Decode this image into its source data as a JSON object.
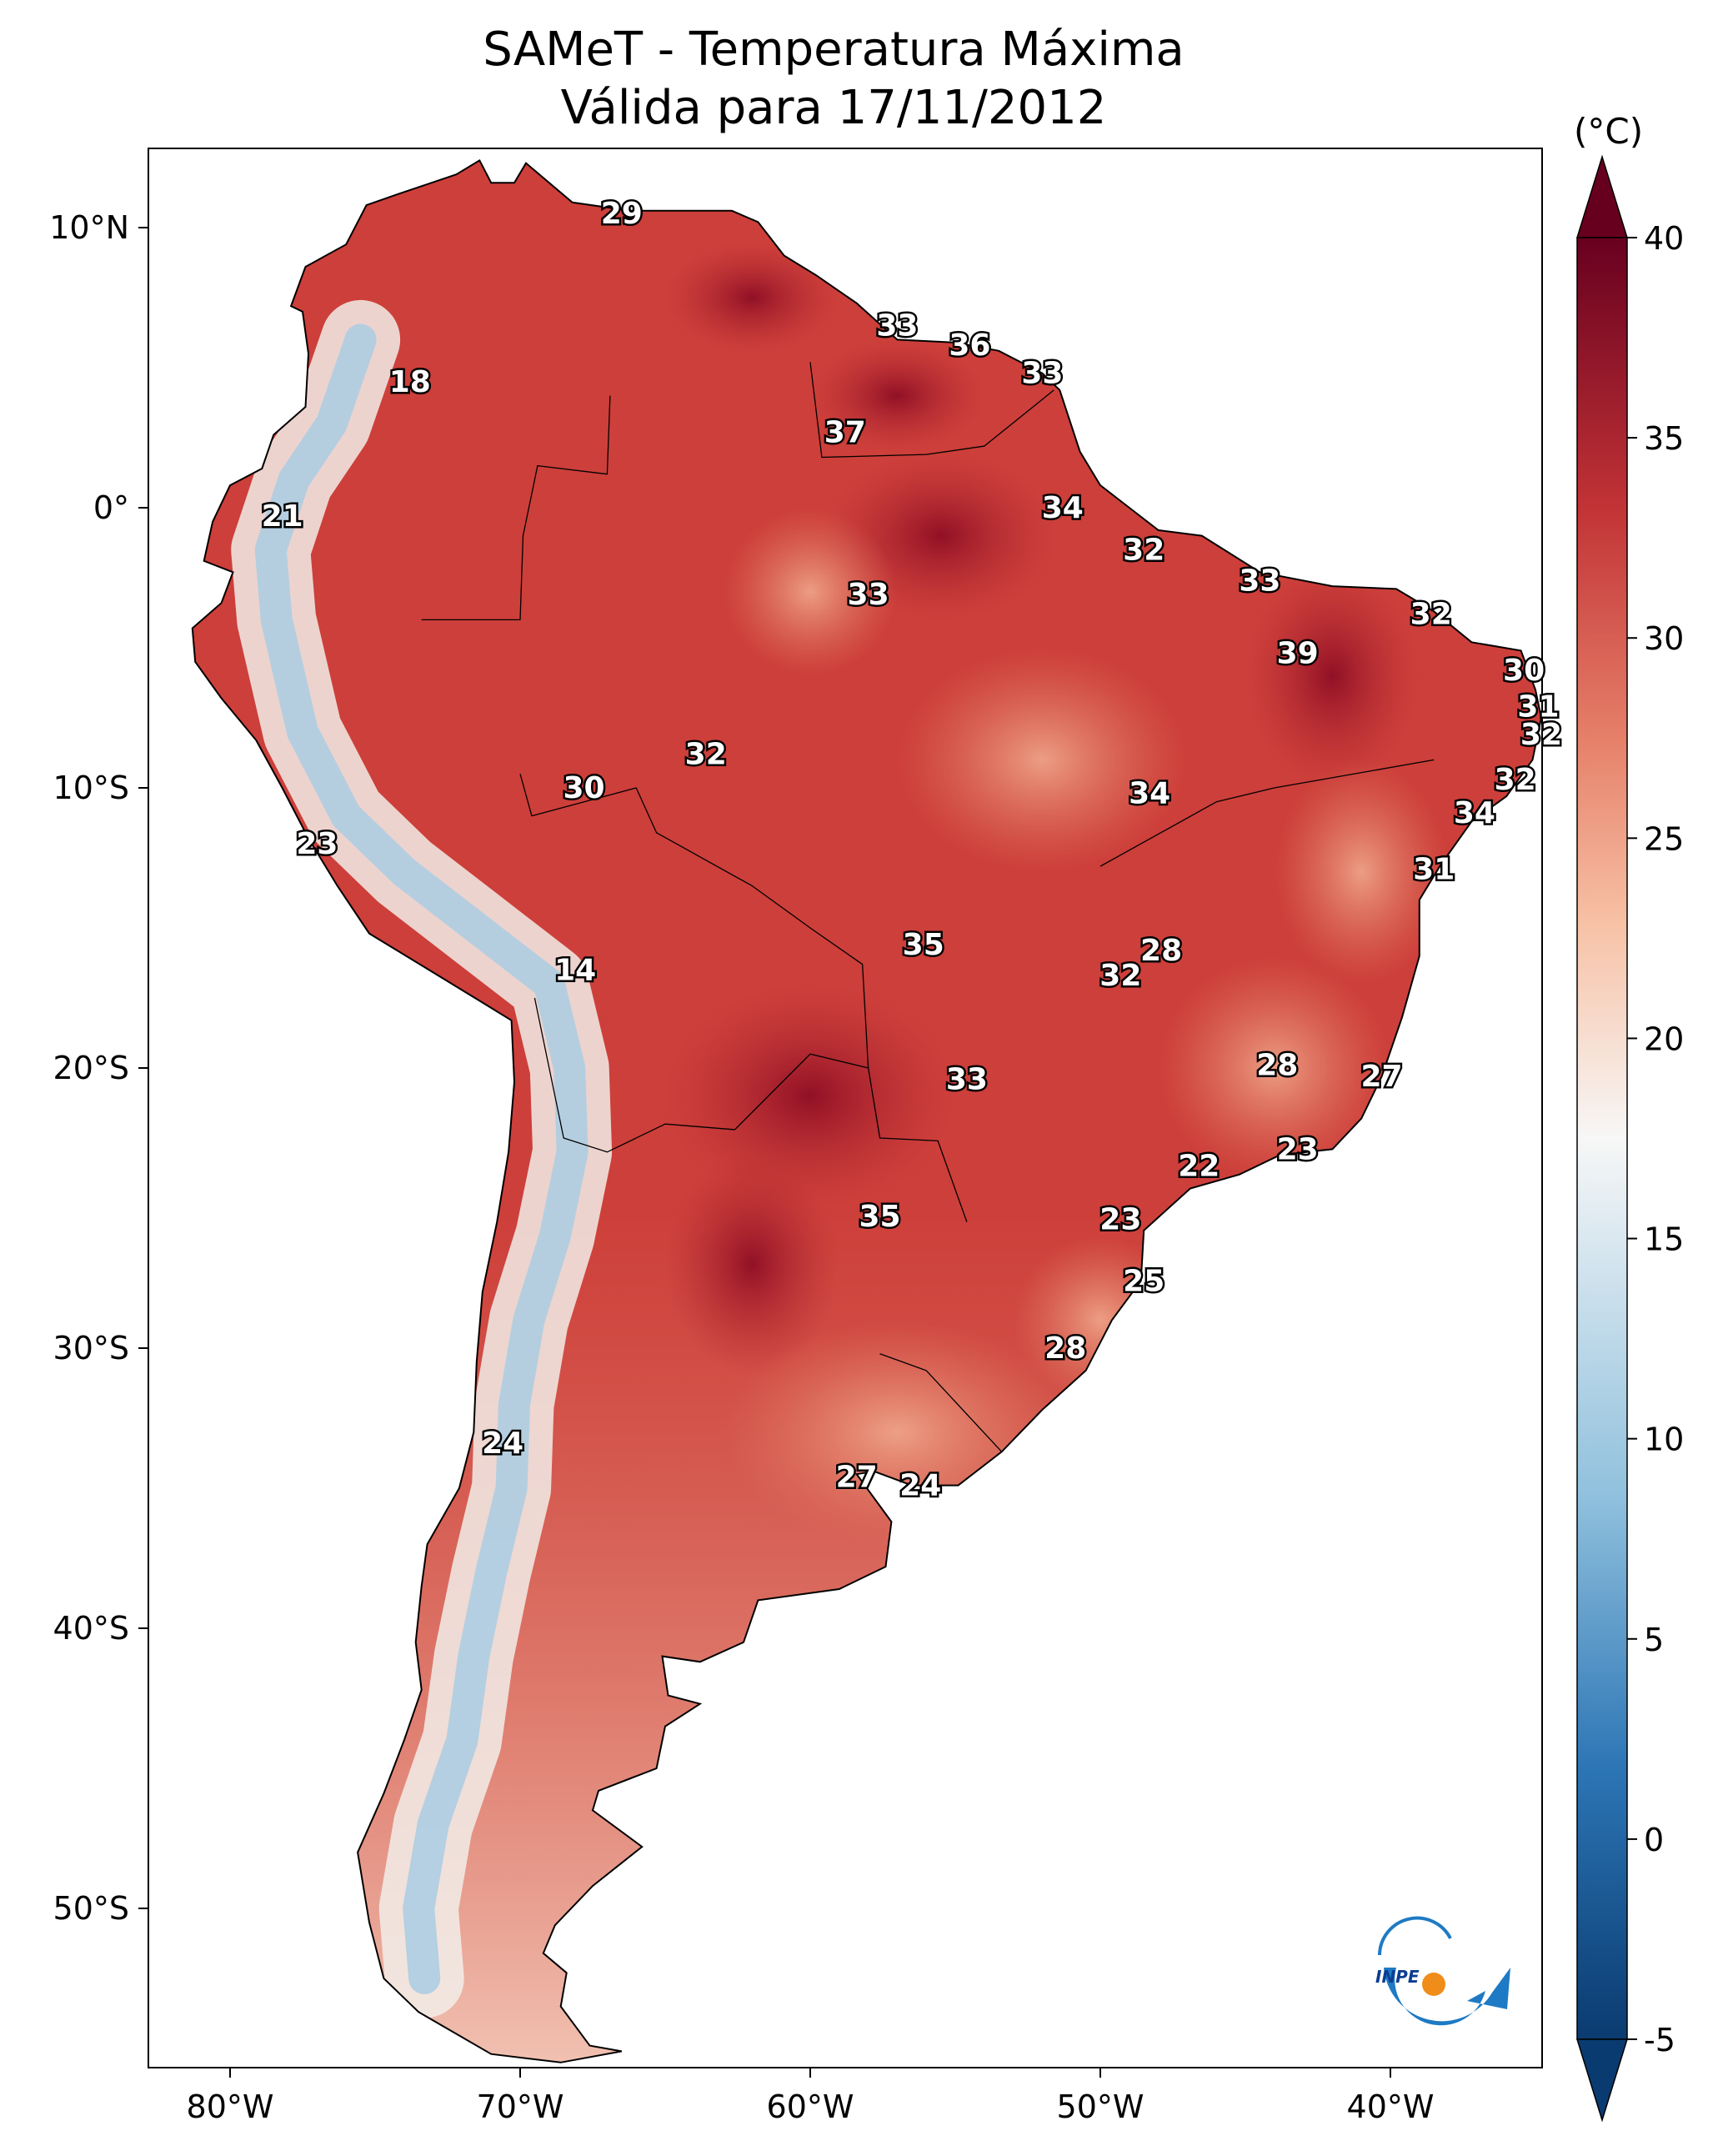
{
  "title": {
    "line1": "SAMeT - Temperatura Máxima",
    "line2": "Válida para 17/11/2012"
  },
  "axes": {
    "x_ticks": [
      {
        "lon": -80,
        "label": "80°W"
      },
      {
        "lon": -70,
        "label": "70°W"
      },
      {
        "lon": -60,
        "label": "60°W"
      },
      {
        "lon": -50,
        "label": "50°W"
      },
      {
        "lon": -40,
        "label": "40°W"
      }
    ],
    "y_ticks": [
      {
        "lat": 10,
        "label": "10°N"
      },
      {
        "lat": 0,
        "label": "0°"
      },
      {
        "lat": -10,
        "label": "10°S"
      },
      {
        "lat": -20,
        "label": "20°S"
      },
      {
        "lat": -30,
        "label": "30°S"
      },
      {
        "lat": -40,
        "label": "40°S"
      },
      {
        "lat": -50,
        "label": "50°S"
      }
    ],
    "lon_range": [
      -83,
      -33
    ],
    "lat_range": [
      -56,
      13
    ]
  },
  "colorbar": {
    "unit": "(°C)",
    "min": -5,
    "max": 40,
    "ticks": [
      {
        "value": 40,
        "label": "40"
      },
      {
        "value": 35,
        "label": "35"
      },
      {
        "value": 30,
        "label": "30"
      },
      {
        "value": 25,
        "label": "25"
      },
      {
        "value": 20,
        "label": "20"
      },
      {
        "value": 15,
        "label": "15"
      },
      {
        "value": 10,
        "label": "10"
      },
      {
        "value": 5,
        "label": "5"
      },
      {
        "value": 0,
        "label": "0"
      },
      {
        "value": -5,
        "label": "-5"
      }
    ],
    "colors": {
      "very_cold": "#0a3b70",
      "cold": "#2c75b5",
      "cool": "#8fc0dd",
      "mild": "#f7f7f7",
      "warm": "#f2a385",
      "hot": "#d0433a",
      "very_hot": "#67001f"
    }
  },
  "chart_data": {
    "type": "map",
    "variable": "Temperatura Máxima",
    "unit": "°C",
    "date": "17/11/2012",
    "station_labels": [
      {
        "lon": -66.5,
        "lat": 10.5,
        "value": 29
      },
      {
        "lon": -57.0,
        "lat": 6.5,
        "value": 33
      },
      {
        "lon": -54.5,
        "lat": 5.8,
        "value": 36
      },
      {
        "lon": -52.0,
        "lat": 4.8,
        "value": 33
      },
      {
        "lon": -73.8,
        "lat": 4.5,
        "value": 18
      },
      {
        "lon": -58.8,
        "lat": 2.7,
        "value": 37
      },
      {
        "lon": -51.3,
        "lat": 0.0,
        "value": 34
      },
      {
        "lon": -78.2,
        "lat": -0.3,
        "value": 21
      },
      {
        "lon": -48.5,
        "lat": -1.5,
        "value": 32
      },
      {
        "lon": -58.0,
        "lat": -3.1,
        "value": 33
      },
      {
        "lon": -44.5,
        "lat": -2.6,
        "value": 33
      },
      {
        "lon": -38.6,
        "lat": -3.8,
        "value": 32
      },
      {
        "lon": -43.2,
        "lat": -5.2,
        "value": 39
      },
      {
        "lon": -35.4,
        "lat": -5.8,
        "value": 30
      },
      {
        "lon": -34.9,
        "lat": -7.1,
        "value": 31
      },
      {
        "lon": -34.8,
        "lat": -8.1,
        "value": 32
      },
      {
        "lon": -63.6,
        "lat": -8.8,
        "value": 32
      },
      {
        "lon": -67.8,
        "lat": -10.0,
        "value": 30
      },
      {
        "lon": -48.3,
        "lat": -10.2,
        "value": 34
      },
      {
        "lon": -35.7,
        "lat": -9.7,
        "value": 32
      },
      {
        "lon": -37.1,
        "lat": -10.9,
        "value": 34
      },
      {
        "lon": -38.5,
        "lat": -12.9,
        "value": 31
      },
      {
        "lon": -77.0,
        "lat": -12.0,
        "value": 23
      },
      {
        "lon": -68.1,
        "lat": -16.5,
        "value": 14
      },
      {
        "lon": -56.1,
        "lat": -15.6,
        "value": 35
      },
      {
        "lon": -47.9,
        "lat": -15.8,
        "value": 28
      },
      {
        "lon": -49.3,
        "lat": -16.7,
        "value": 32
      },
      {
        "lon": -43.9,
        "lat": -19.9,
        "value": 28
      },
      {
        "lon": -40.3,
        "lat": -20.3,
        "value": 27
      },
      {
        "lon": -54.6,
        "lat": -20.4,
        "value": 33
      },
      {
        "lon": -43.2,
        "lat": -22.9,
        "value": 23
      },
      {
        "lon": -46.6,
        "lat": -23.5,
        "value": 22
      },
      {
        "lon": -57.6,
        "lat": -25.3,
        "value": 35
      },
      {
        "lon": -49.3,
        "lat": -25.4,
        "value": 23
      },
      {
        "lon": -48.5,
        "lat": -27.6,
        "value": 25
      },
      {
        "lon": -51.2,
        "lat": -30.0,
        "value": 28
      },
      {
        "lon": -70.6,
        "lat": -33.4,
        "value": 24
      },
      {
        "lon": -58.4,
        "lat": -34.6,
        "value": 27
      },
      {
        "lon": -56.2,
        "lat": -34.9,
        "value": 24
      }
    ]
  },
  "logo": {
    "text": "INPE"
  }
}
